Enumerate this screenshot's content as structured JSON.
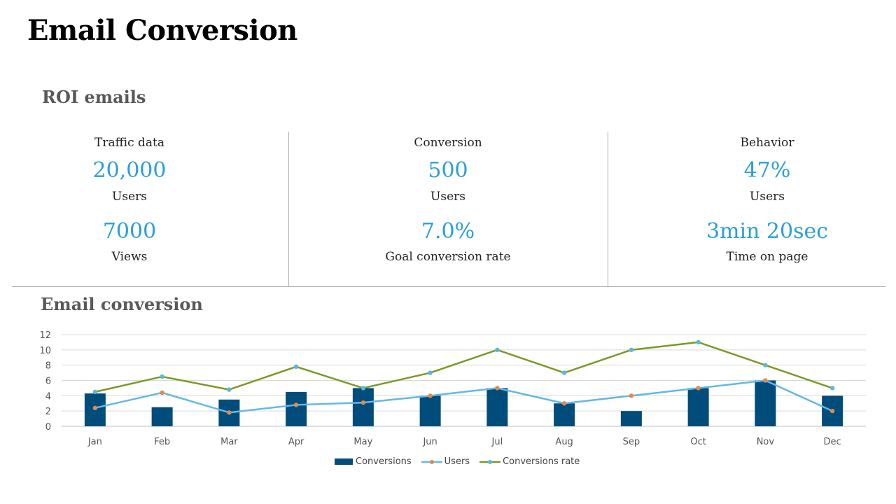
{
  "page": {
    "title": "Email Conversion",
    "roi_title": "ROI emails",
    "chart_section_title": "Email conversion"
  },
  "kpis": [
    {
      "heading": "Traffic data",
      "value1": "20,000",
      "label1": "Users",
      "value2": "7000",
      "label2": "Views"
    },
    {
      "heading": "Conversion",
      "value1": "500",
      "label1": "Users",
      "value2": "7.0%",
      "label2": "Goal conversion rate"
    },
    {
      "heading": "Behavior",
      "value1": "47%",
      "label1": "Users",
      "value2": "3min 20sec",
      "label2": "Time on page"
    }
  ],
  "colors": {
    "accent_value": "#2a9fd8",
    "bar": "#004c7a",
    "users_line": "#64b8e6",
    "rate_line": "#7a9a26",
    "users_marker": "#e08a4e",
    "rate_marker": "#5bb8d6"
  },
  "chart_data": {
    "type": "bar",
    "categories": [
      "Jan",
      "Feb",
      "Mar",
      "Apr",
      "May",
      "Jun",
      "Jul",
      "Aug",
      "Sep",
      "Oct",
      "Nov",
      "Dec"
    ],
    "series": [
      {
        "name": "Conversions",
        "type": "bar",
        "values": [
          4.3,
          2.5,
          3.5,
          4.5,
          5.0,
          4.0,
          5.0,
          3.0,
          2.0,
          5.0,
          6.0,
          4.0
        ]
      },
      {
        "name": "Users",
        "type": "line",
        "values": [
          2.4,
          4.4,
          1.8,
          2.8,
          3.1,
          4.0,
          5.0,
          3.0,
          4.0,
          5.0,
          6.0,
          2.0
        ]
      },
      {
        "name": "Conversions rate",
        "type": "line",
        "values": [
          4.5,
          6.5,
          4.8,
          7.8,
          5.0,
          7.0,
          10.0,
          7.0,
          10.0,
          11.0,
          8.0,
          5.0
        ]
      }
    ],
    "y_ticks": [
      "0",
      "2",
      "4",
      "6",
      "8",
      "10",
      "12"
    ],
    "ylim": [
      0,
      12
    ],
    "grid": true,
    "legend": "bottom"
  }
}
